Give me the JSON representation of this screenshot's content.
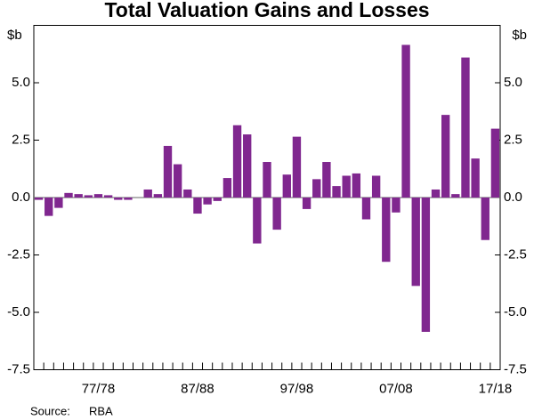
{
  "chart_data": {
    "type": "bar",
    "title": "Total Valuation Gains and Losses",
    "y_label": "$b",
    "source_label": "Source:",
    "source": "RBA",
    "color": "#80278f",
    "categories": [
      null,
      null,
      null,
      null,
      null,
      null,
      "77/78",
      null,
      null,
      null,
      null,
      null,
      null,
      null,
      null,
      null,
      "87/88",
      null,
      null,
      null,
      null,
      null,
      null,
      null,
      null,
      null,
      "97/98",
      null,
      null,
      null,
      null,
      null,
      null,
      null,
      null,
      null,
      "07/08",
      null,
      null,
      null,
      null,
      null,
      null,
      null,
      null,
      null,
      "17/18"
    ],
    "values": [
      -0.1,
      -0.8,
      -0.45,
      0.2,
      0.15,
      0.1,
      0.15,
      0.1,
      -0.1,
      -0.1,
      0.0,
      0.35,
      0.15,
      2.25,
      1.45,
      0.35,
      -0.7,
      -0.3,
      -0.15,
      0.85,
      3.15,
      2.75,
      -2.0,
      1.55,
      -1.4,
      1.0,
      2.65,
      -0.5,
      0.8,
      1.55,
      0.5,
      0.95,
      1.05,
      -0.95,
      0.95,
      -2.8,
      -0.65,
      6.65,
      -3.85,
      -5.85,
      0.35,
      3.6,
      0.15,
      6.1,
      1.7,
      -1.85,
      3.0
    ],
    "ylim": [
      -7.5,
      7.5
    ],
    "yticks": [
      -7.5,
      {
        "value": -5,
        "label": "-5.0"
      },
      -2.5,
      {
        "value": 0,
        "label": "0.0"
      },
      2.5,
      {
        "value": 5,
        "label": "5.0"
      }
    ]
  }
}
